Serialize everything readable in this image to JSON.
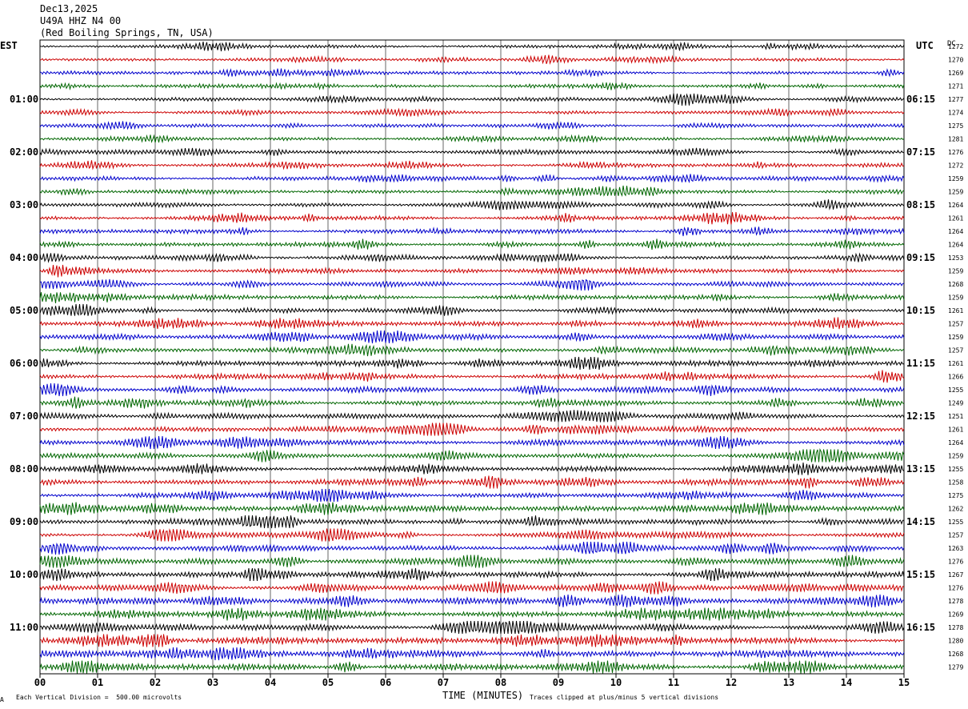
{
  "header": {
    "date": "Dec13,2025",
    "station": "U49A HHZ N4 00",
    "location": "(Red Boiling Springs, TN, USA)"
  },
  "axis_labels": {
    "left_timezone": "EST",
    "right_timezone": "UTC",
    "right_col": "DC",
    "xlabel": "TIME (MINUTES)"
  },
  "footer": {
    "scale_note": "Each Vertical Division =  500.00 microvolts",
    "clip_note": "Traces clipped at plus/minus 5 vertical divisions",
    "corner_mark": "A"
  },
  "colors": {
    "trace_cycle": [
      "#000000",
      "#cc0000",
      "#0000cc",
      "#006600"
    ],
    "grid": "#000000"
  },
  "chart_data": {
    "type": "line",
    "subtype": "helicorder",
    "x_ticks": [
      "00",
      "01",
      "02",
      "03",
      "04",
      "05",
      "06",
      "07",
      "08",
      "09",
      "10",
      "11",
      "12",
      "13",
      "14",
      "15"
    ],
    "xlim": [
      0,
      15
    ],
    "left_hour_labels": [
      "01:00",
      "02:00",
      "03:00",
      "04:00",
      "05:00",
      "06:00",
      "07:00",
      "08:00",
      "09:00",
      "10:00",
      "11:00"
    ],
    "right_hour_labels": [
      "06:15",
      "07:15",
      "08:15",
      "09:15",
      "10:15",
      "11:15",
      "12:15",
      "13:15",
      "14:15",
      "15:15",
      "16:15"
    ],
    "dc_offsets": [
      1272,
      1270,
      1269,
      1271,
      1277,
      1274,
      1275,
      1281,
      1276,
      1272,
      1259,
      1259,
      1264,
      1261,
      1264,
      1264,
      1253,
      1259,
      1268,
      1259,
      1261,
      1257,
      1259,
      1257,
      1261,
      1266,
      1255,
      1249,
      1251,
      1261,
      1264,
      1259,
      1255,
      1258,
      1275,
      1262,
      1255,
      1257,
      1263,
      1276,
      1267,
      1276,
      1278,
      1269,
      1278,
      1280,
      1268,
      1279
    ],
    "grid": true
  }
}
